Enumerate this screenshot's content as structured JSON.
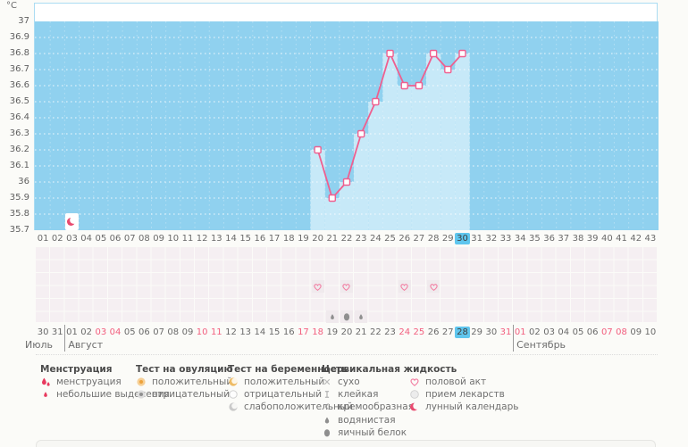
{
  "chart_data": {
    "type": "line",
    "unit_label": "°C",
    "ylim": [
      35.7,
      37.0
    ],
    "ytick_step": 0.1,
    "ytick_labels": [
      "37",
      "36.9",
      "36.8",
      "36.7",
      "36.6",
      "36.5",
      "36.4",
      "36.3",
      "36.2",
      "36.1",
      "36",
      "35.9",
      "35.8",
      "35.7"
    ],
    "xtick_labels": [
      "01",
      "02",
      "03",
      "04",
      "05",
      "06",
      "07",
      "08",
      "09",
      "10",
      "11",
      "12",
      "13",
      "14",
      "15",
      "16",
      "17",
      "18",
      "19",
      "20",
      "21",
      "22",
      "23",
      "24",
      "25",
      "26",
      "27",
      "28",
      "29",
      "30",
      "31",
      "32",
      "33",
      "34",
      "35",
      "36",
      "37",
      "38",
      "39",
      "40",
      "41",
      "42",
      "43"
    ],
    "highlighted_cycle_day": "30",
    "grid": "dotted-horizontal-each-0.1",
    "series": [
      {
        "name": "basal-temperature",
        "color": "#ef5f8f",
        "points": [
          {
            "day": 20,
            "temp": 36.2
          },
          {
            "day": 21,
            "temp": 35.9
          },
          {
            "day": 22,
            "temp": 36.0
          },
          {
            "day": 23,
            "temp": 36.3
          },
          {
            "day": 24,
            "temp": 36.5
          },
          {
            "day": 25,
            "temp": 36.8
          },
          {
            "day": 26,
            "temp": 36.6
          },
          {
            "day": 27,
            "temp": 36.6
          },
          {
            "day": 28,
            "temp": 36.8
          },
          {
            "day": 29,
            "temp": 36.7
          },
          {
            "day": 30,
            "temp": 36.8
          }
        ]
      }
    ],
    "in_chart_markers": [
      {
        "day": 3,
        "icon": "lunar-calendar-icon"
      }
    ]
  },
  "symptom_band": {
    "intercourse": {
      "icon": "heart-icon",
      "days": [
        20,
        22,
        26,
        28
      ]
    },
    "cervical_fluid": [
      {
        "day": 21,
        "icon": "watery-drop-icon"
      },
      {
        "day": 22,
        "icon": "egg-white-icon"
      },
      {
        "day": 23,
        "icon": "watery-drop-icon"
      }
    ]
  },
  "calendar": {
    "months": [
      {
        "name": "Июль",
        "dates": [
          "30",
          "31"
        ],
        "weekend_dates": [],
        "highlighted_date": null
      },
      {
        "name": "Август",
        "dates": [
          "01",
          "02",
          "03",
          "04",
          "05",
          "06",
          "07",
          "08",
          "09",
          "10",
          "11",
          "12",
          "13",
          "14",
          "15",
          "16",
          "17",
          "18",
          "19",
          "20",
          "21",
          "22",
          "23",
          "24",
          "25",
          "26",
          "27",
          "28",
          "29",
          "30",
          "31"
        ],
        "weekend_dates": [
          "03",
          "04",
          "10",
          "11",
          "17",
          "18",
          "24",
          "25",
          "31"
        ],
        "highlighted_date": "28"
      },
      {
        "name": "Сентябрь",
        "dates": [
          "01",
          "02",
          "03",
          "04",
          "05",
          "06",
          "07",
          "08",
          "09",
          "10"
        ],
        "weekend_dates": [
          "01",
          "07",
          "08"
        ],
        "highlighted_date": null
      }
    ]
  },
  "legend": {
    "columns": [
      {
        "title": "Менструация",
        "items": [
          {
            "icon": "menstruation-drops-icon",
            "label": "менструация"
          },
          {
            "icon": "spotting-drop-icon",
            "label": "небольшие выделения"
          }
        ]
      },
      {
        "title": "Тест на овуляцию",
        "items": [
          {
            "icon": "ovulation-positive-icon",
            "label": "положительный"
          },
          {
            "icon": "ovulation-negative-icon",
            "label": "отрицательный"
          }
        ]
      },
      {
        "title": "Тест на беременность",
        "items": [
          {
            "icon": "pregnancy-positive-icon",
            "label": "положительный"
          },
          {
            "icon": "pregnancy-negative-icon",
            "label": "отрицательный"
          },
          {
            "icon": "pregnancy-weak-positive-icon",
            "label": "слабоположительный"
          }
        ]
      },
      {
        "title": "Цервикальная жидкость",
        "items": [
          {
            "icon": "dry-icon",
            "label": "сухо"
          },
          {
            "icon": "sticky-icon",
            "label": "клейкая"
          },
          {
            "icon": "creamy-icon",
            "label": "кремообразная"
          },
          {
            "icon": "watery-drop-icon",
            "label": "водянистая"
          },
          {
            "icon": "egg-white-icon",
            "label": "яичный белок"
          }
        ]
      },
      {
        "title": "",
        "items": [
          {
            "icon": "heart-icon",
            "label": "половой акт"
          },
          {
            "icon": "medication-icon",
            "label": "прием лекарств"
          },
          {
            "icon": "lunar-calendar-icon",
            "label": "лунный календарь"
          }
        ]
      }
    ]
  },
  "colors": {
    "plot_background": "#90d1ef",
    "value_column": "#c7e9f8",
    "temperature_line": "#ef5f8f",
    "chart_border": "#abdcf2",
    "highlight_cyan": "#5fc6ee",
    "weekend_red": "#f25e7e",
    "menstruation_red": "#e83a5f",
    "ovulation_orange": "#eda23b",
    "symbol_gray": "#8f8f8f",
    "band_cell_pink": "#f5eff2"
  }
}
